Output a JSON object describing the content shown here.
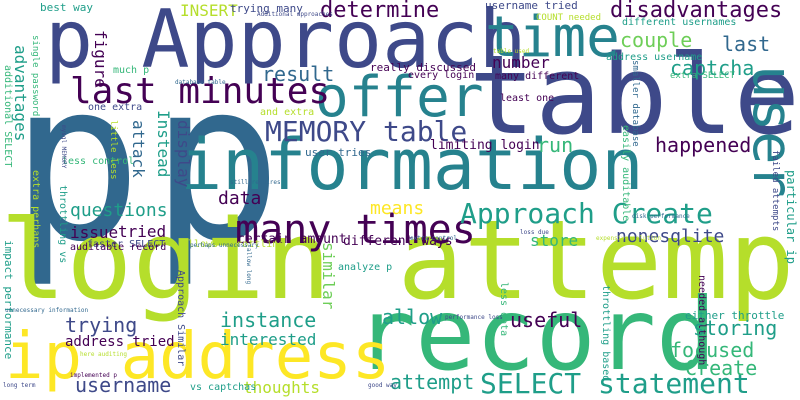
{
  "palette": {
    "lime": "#b5de2b",
    "green": "#6ece58",
    "teal": "#35b779",
    "cyan": "#1f9e89",
    "blue_green": "#26828e",
    "steel": "#31688e",
    "indigo": "#3e4989",
    "violet": "#482878",
    "deep_purple": "#440154",
    "yellow": "#fde725"
  },
  "words": [
    {
      "text": "p",
      "color": "steel"
    },
    {
      "text": "p",
      "color": "steel"
    },
    {
      "text": "table",
      "color": "indigo"
    },
    {
      "text": "login attempt",
      "color": "lime"
    },
    {
      "text": "information",
      "color": "blue_green"
    },
    {
      "text": "record",
      "color": "teal"
    },
    {
      "text": "p Approach",
      "color": "indigo"
    },
    {
      "text": "ip address",
      "color": "yellow"
    },
    {
      "text": "offer",
      "color": "blue_green"
    },
    {
      "text": "user",
      "color": "blue_green"
    },
    {
      "text": "last minutes",
      "color": "deep_purple"
    },
    {
      "text": "time",
      "color": "blue_green"
    },
    {
      "text": "many times",
      "color": "deep_purple"
    },
    {
      "text": "MEMORY table",
      "color": "indigo"
    },
    {
      "text": "Approach Create",
      "color": "cyan"
    },
    {
      "text": "SELECT statement",
      "color": "cyan"
    },
    {
      "text": "disadvantages",
      "color": "deep_purple"
    },
    {
      "text": "happened",
      "color": "deep_purple"
    },
    {
      "text": "determine",
      "color": "deep_purple"
    },
    {
      "text": "captcha",
      "color": "cyan"
    },
    {
      "text": "couple",
      "color": "green"
    },
    {
      "text": "last",
      "color": "steel"
    },
    {
      "text": "result",
      "color": "steel"
    },
    {
      "text": "run",
      "color": "teal"
    },
    {
      "text": "focused",
      "color": "teal"
    },
    {
      "text": "Create",
      "color": "teal"
    },
    {
      "text": "storing",
      "color": "cyan"
    },
    {
      "text": "instance",
      "color": "cyan"
    },
    {
      "text": "useful",
      "color": "deep_purple"
    },
    {
      "text": "allow",
      "color": "cyan"
    },
    {
      "text": "attempt",
      "color": "cyan"
    },
    {
      "text": "trying",
      "color": "indigo"
    },
    {
      "text": "username",
      "color": "indigo"
    },
    {
      "text": "thoughts",
      "color": "lime"
    },
    {
      "text": "interested",
      "color": "cyan"
    },
    {
      "text": "address tried",
      "color": "deep_purple"
    },
    {
      "text": "questions",
      "color": "cyan"
    },
    {
      "text": "issue",
      "color": "deep_purple"
    },
    {
      "text": "tried",
      "color": "deep_purple"
    },
    {
      "text": "data",
      "color": "deep_purple"
    },
    {
      "text": "means",
      "color": "yellow"
    },
    {
      "text": "nonesqlite",
      "color": "indigo"
    },
    {
      "text": "store",
      "color": "teal"
    },
    {
      "text": "number",
      "color": "deep_purple"
    },
    {
      "text": "similar",
      "color": "green"
    },
    {
      "text": "INSERT",
      "color": "lime"
    },
    {
      "text": "trying many",
      "color": "indigo"
    },
    {
      "text": "username tried",
      "color": "indigo"
    },
    {
      "text": "advantages",
      "color": "cyan"
    },
    {
      "text": "figure",
      "color": "deep_purple"
    },
    {
      "text": "attack",
      "color": "steel"
    },
    {
      "text": "Instead",
      "color": "cyan"
    },
    {
      "text": "display",
      "color": "indigo"
    },
    {
      "text": "limiting login",
      "color": "deep_purple"
    },
    {
      "text": "user tries",
      "color": "steel"
    },
    {
      "text": "certain amount",
      "color": "deep_purple"
    },
    {
      "text": "different ways",
      "color": "deep_purple"
    },
    {
      "text": "really discussed",
      "color": "deep_purple"
    },
    {
      "text": "every login",
      "color": "deep_purple"
    },
    {
      "text": "many different",
      "color": "deep_purple"
    },
    {
      "text": "least one",
      "color": "deep_purple"
    },
    {
      "text": "much p",
      "color": "teal"
    },
    {
      "text": "one extra",
      "color": "indigo"
    },
    {
      "text": "and extra",
      "color": "lime"
    },
    {
      "text": "best way",
      "color": "cyan"
    },
    {
      "text": "additional SELECT",
      "color": "teal"
    },
    {
      "text": "single password",
      "color": "teal"
    },
    {
      "text": "impact performance",
      "color": "cyan"
    },
    {
      "text": "extra perhaps",
      "color": "lime"
    },
    {
      "text": "throttling vs",
      "color": "cyan"
    },
    {
      "text": "less control",
      "color": "teal"
    },
    {
      "text": "faster SELECT",
      "color": "indigo"
    },
    {
      "text": "auditable record",
      "color": "deep_purple"
    },
    {
      "text": "allows throttling",
      "color": "lime"
    },
    {
      "text": "vs captchas",
      "color": "cyan"
    },
    {
      "text": "analyze p",
      "color": "cyan"
    },
    {
      "text": "different usernames",
      "color": "cyan"
    },
    {
      "text": "address username",
      "color": "cyan"
    },
    {
      "text": "extra SELECT",
      "color": "teal"
    },
    {
      "text": "COUNT needed",
      "color": "lime"
    },
    {
      "text": "smaller database",
      "color": "steel"
    },
    {
      "text": "easily auditable",
      "color": "teal"
    },
    {
      "text": "particular ip",
      "color": "cyan"
    },
    {
      "text": "failed attempts",
      "color": "indigo"
    },
    {
      "text": "either throttle",
      "color": "cyan"
    },
    {
      "text": "needed although",
      "color": "deep_purple"
    },
    {
      "text": "throttling based",
      "color": "cyan"
    },
    {
      "text": "less data",
      "color": "teal"
    },
    {
      "text": "little less",
      "color": "lime"
    },
    {
      "text": "Approach Similar",
      "color": "indigo"
    },
    {
      "text": "perhaps unnecessary",
      "color": "steel"
    },
    {
      "text": "still requires",
      "color": "steel"
    },
    {
      "text": "Additional approaches",
      "color": "indigo"
    },
    {
      "text": "long term",
      "color": "indigo"
    },
    {
      "text": "good way",
      "color": "indigo"
    },
    {
      "text": "unnecessary information",
      "color": "steel"
    },
    {
      "text": "performance loss",
      "color": "indigo"
    },
    {
      "text": "extra control",
      "color": "steel"
    },
    {
      "text": "loss due",
      "color": "indigo"
    },
    {
      "text": "disk performance",
      "color": "steel"
    },
    {
      "text": "allow long",
      "color": "steel"
    },
    {
      "text": "implemented p",
      "color": "deep_purple"
    },
    {
      "text": "here auditing",
      "color": "lime"
    },
    {
      "text": "mysql MEMORY",
      "color": "indigo"
    },
    {
      "text": "database table",
      "color": "steel"
    },
    {
      "text": "expensive solution",
      "color": "lime"
    },
    {
      "text": "table used",
      "color": "lime"
    }
  ]
}
